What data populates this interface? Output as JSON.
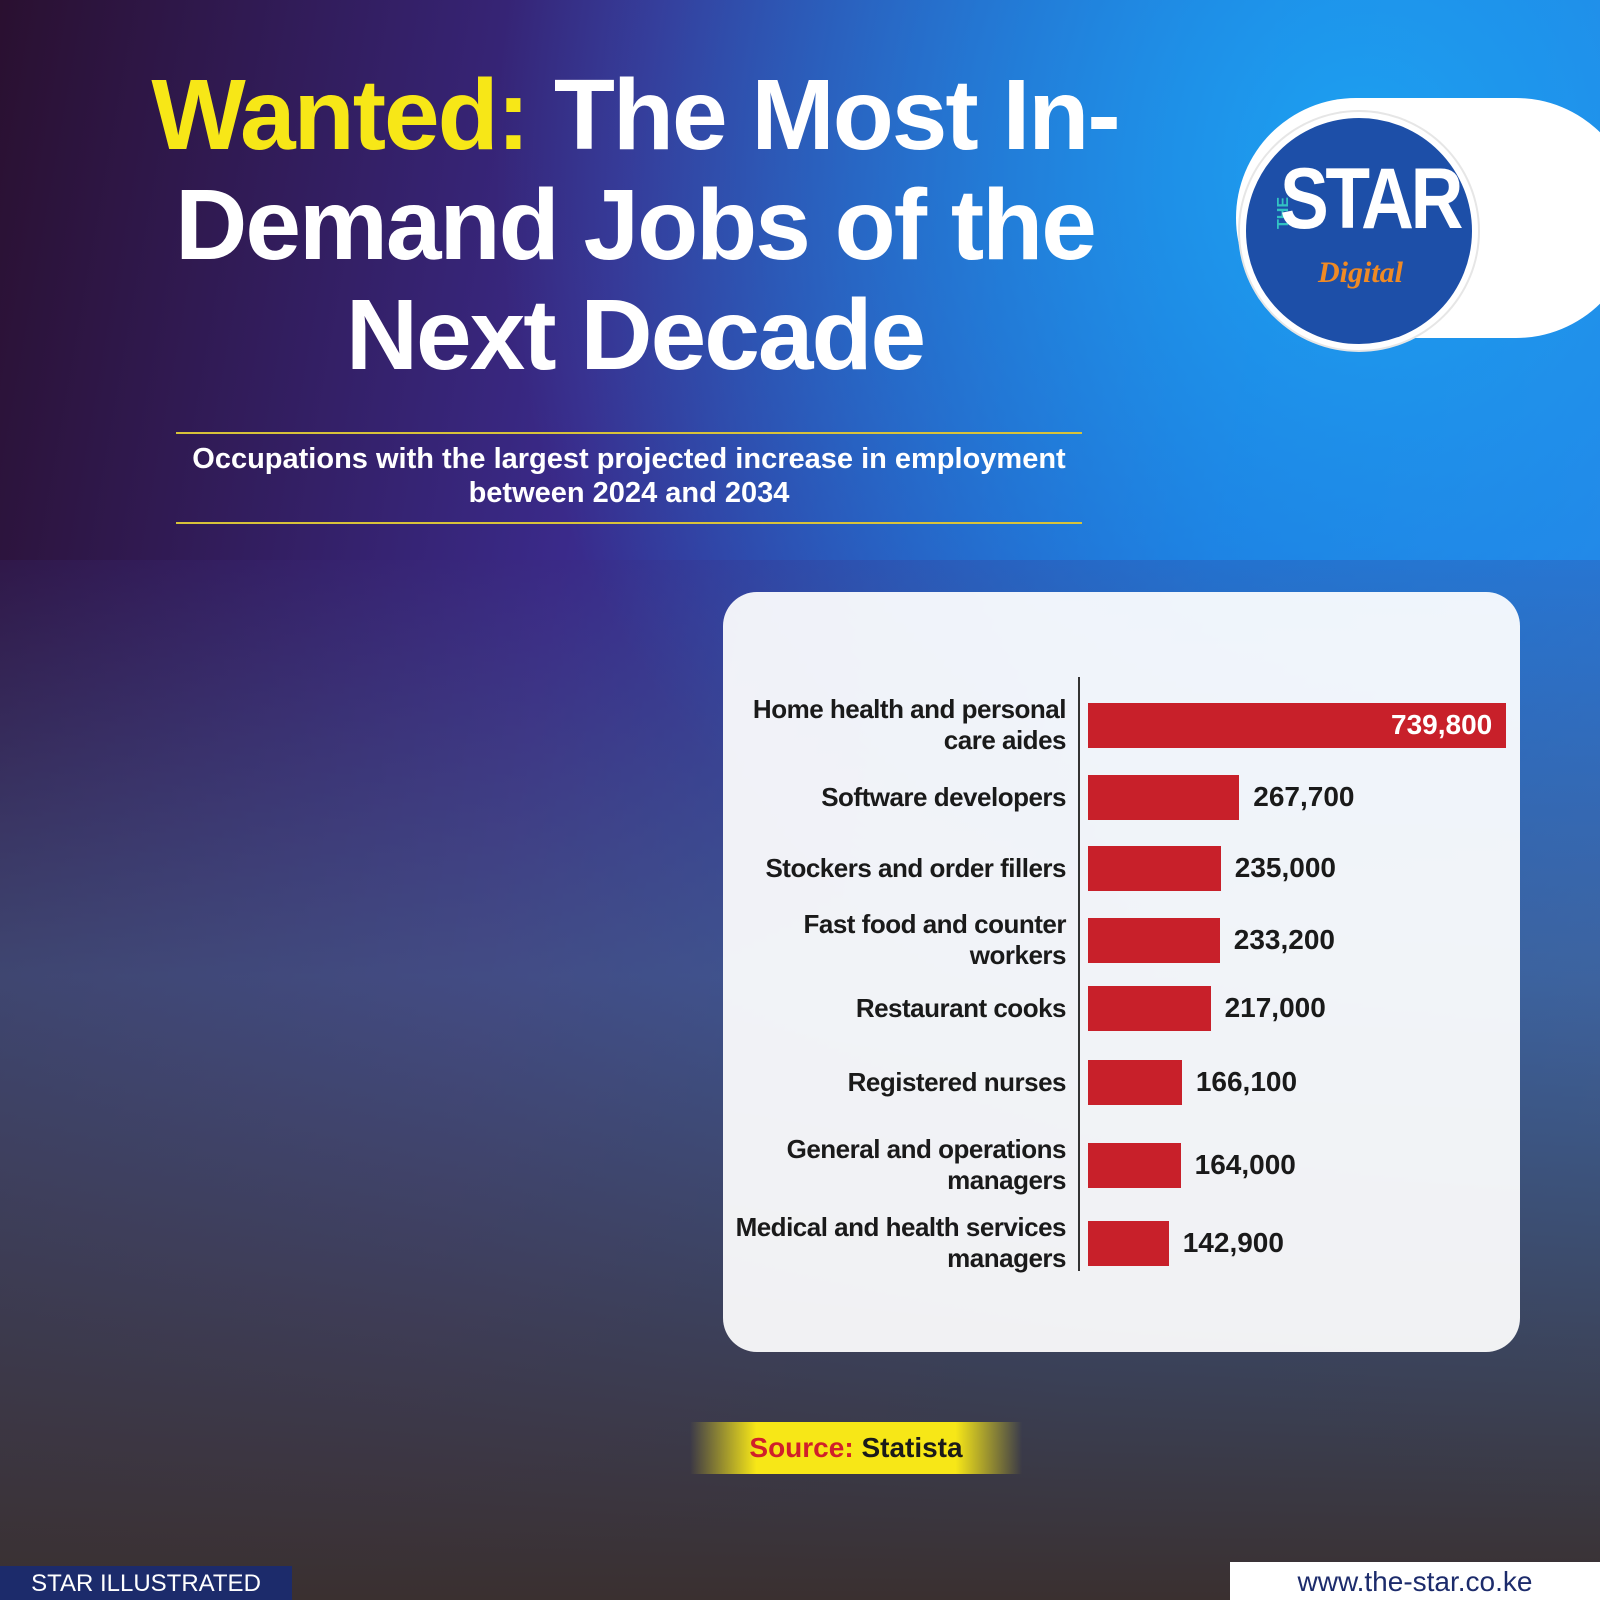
{
  "chart_data": {
    "type": "bar",
    "orientation": "horizontal",
    "title_highlight": "Wanted:",
    "title": "The Most In-Demand Jobs of the Next Decade",
    "subtitle": "Occupations with the largest projected increase in employment between 2024 and 2034",
    "categories": [
      "Home health and personal care aides",
      "Software developers",
      "Stockers and order fillers",
      "Fast food and counter workers",
      "Restaurant cooks",
      "Registered nurses",
      "General and operations managers",
      "Medical and health services managers"
    ],
    "values": [
      739800,
      267700,
      235000,
      233200,
      217000,
      166100,
      164000,
      142900
    ],
    "value_labels": [
      "739,800",
      "267,700",
      "235,000",
      "233,200",
      "217,000",
      "166,100",
      "164,000",
      "142,900"
    ],
    "color": "#c8202a",
    "source_label": "Source:",
    "source": "Statista"
  },
  "logo": {
    "the": "THE",
    "star": "STAR",
    "digital": "Digital"
  },
  "footer": {
    "credit": "STAR ILLUSTRATED",
    "url": "www.the-star.co.ke"
  }
}
